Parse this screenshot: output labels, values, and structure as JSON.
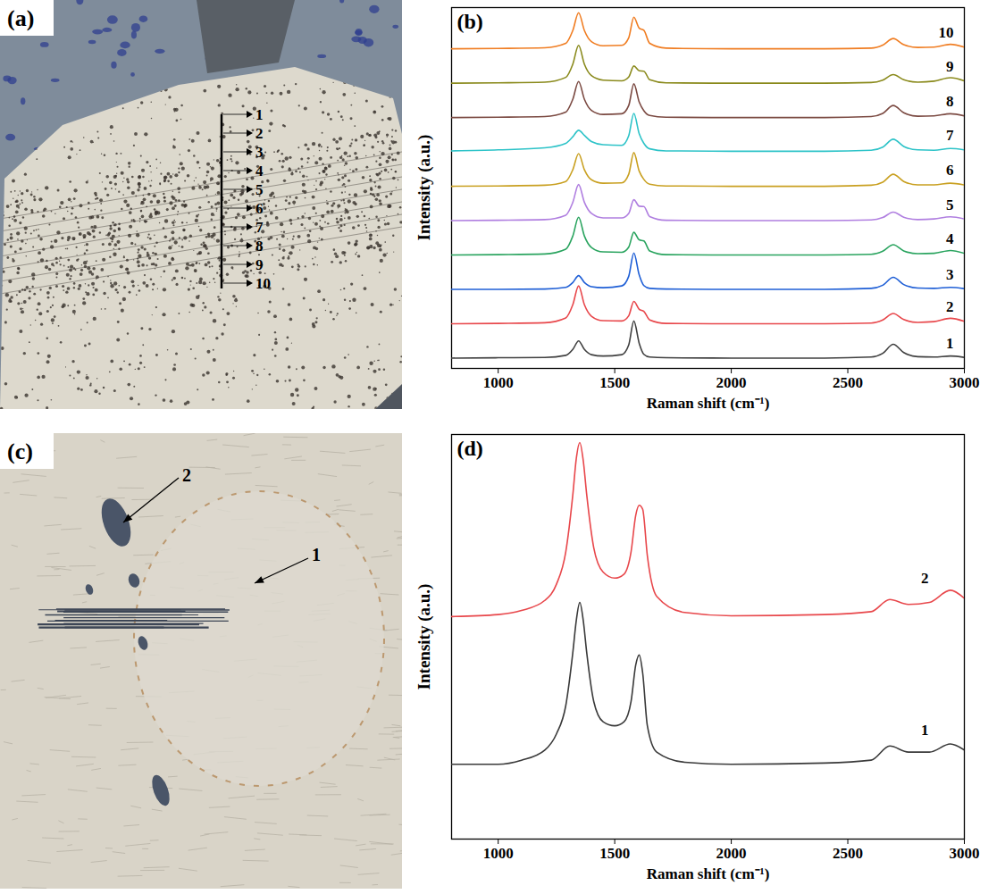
{
  "images": [
    {
      "letter": "(a)",
      "markers": [
        "1",
        "2",
        "3",
        "4",
        "5",
        "6",
        "7",
        "8",
        "9",
        "10"
      ]
    },
    {
      "letter": "(c)",
      "markers": [
        "1",
        "2"
      ]
    }
  ],
  "chart_data": [
    {
      "type": "line",
      "title": "(b)",
      "x_label": "Raman shift (cm⁻¹)",
      "y_label": "Intensity (a.u.)",
      "x": [
        800,
        1000,
        1200,
        1290,
        1320,
        1345,
        1370,
        1400,
        1450,
        1530,
        1560,
        1582,
        1605,
        1625,
        1650,
        1720,
        2000,
        2400,
        2600,
        2650,
        2695,
        2740,
        2800,
        2870,
        2940,
        3000
      ],
      "xlim": [
        800,
        3000
      ],
      "xticks": [
        1000,
        1500,
        2000,
        2500,
        3000
      ],
      "ylim": [
        0,
        10.5
      ],
      "yticks": [],
      "tick_labels": "x",
      "series": [
        {
          "name": "1",
          "color": "#404040",
          "values": [
            0.3,
            0.31,
            0.32,
            0.38,
            0.55,
            0.8,
            0.55,
            0.4,
            0.36,
            0.4,
            0.68,
            1.38,
            0.73,
            0.41,
            0.33,
            0.31,
            0.3,
            0.3,
            0.33,
            0.44,
            0.7,
            0.46,
            0.34,
            0.33,
            0.36,
            0.32
          ]
        },
        {
          "name": "2",
          "color": "#e8474b",
          "values": [
            1.3,
            1.31,
            1.33,
            1.47,
            1.85,
            2.4,
            1.85,
            1.52,
            1.39,
            1.38,
            1.53,
            1.95,
            1.72,
            1.66,
            1.41,
            1.31,
            1.3,
            1.3,
            1.32,
            1.41,
            1.6,
            1.42,
            1.34,
            1.36,
            1.46,
            1.37
          ]
        },
        {
          "name": "3",
          "color": "#1f5fd6",
          "values": [
            2.3,
            2.3,
            2.31,
            2.36,
            2.5,
            2.7,
            2.5,
            2.38,
            2.35,
            2.4,
            2.68,
            3.36,
            2.72,
            2.41,
            2.33,
            2.31,
            2.3,
            2.3,
            2.33,
            2.42,
            2.65,
            2.44,
            2.34,
            2.33,
            2.36,
            2.32
          ]
        },
        {
          "name": "4",
          "color": "#2aa45f",
          "values": [
            3.3,
            3.31,
            3.33,
            3.47,
            3.85,
            4.4,
            3.85,
            3.52,
            3.39,
            3.38,
            3.53,
            3.96,
            3.74,
            3.71,
            3.42,
            3.31,
            3.3,
            3.3,
            3.32,
            3.41,
            3.6,
            3.42,
            3.34,
            3.35,
            3.43,
            3.35
          ]
        },
        {
          "name": "5",
          "color": "#b07fe0",
          "values": [
            4.3,
            4.31,
            4.33,
            4.46,
            4.83,
            5.35,
            4.83,
            4.51,
            4.38,
            4.38,
            4.51,
            4.91,
            4.72,
            4.71,
            4.42,
            4.31,
            4.3,
            4.3,
            4.32,
            4.39,
            4.55,
            4.4,
            4.33,
            4.35,
            4.41,
            4.35
          ]
        },
        {
          "name": "6",
          "color": "#c9a021",
          "values": [
            5.3,
            5.31,
            5.33,
            5.44,
            5.78,
            6.25,
            5.78,
            5.49,
            5.39,
            5.4,
            5.65,
            6.28,
            5.74,
            5.5,
            5.36,
            5.31,
            5.3,
            5.3,
            5.33,
            5.42,
            5.65,
            5.44,
            5.34,
            5.34,
            5.39,
            5.34
          ]
        },
        {
          "name": "7",
          "color": "#2dc3c8",
          "values": [
            6.33,
            6.36,
            6.42,
            6.55,
            6.74,
            6.93,
            6.78,
            6.6,
            6.51,
            6.49,
            6.77,
            7.42,
            6.83,
            6.55,
            6.39,
            6.33,
            6.32,
            6.32,
            6.35,
            6.44,
            6.67,
            6.46,
            6.36,
            6.35,
            6.4,
            6.36
          ]
        },
        {
          "name": "8",
          "color": "#7b4a42",
          "values": [
            7.3,
            7.31,
            7.33,
            7.46,
            7.83,
            8.35,
            7.83,
            7.51,
            7.39,
            7.41,
            7.65,
            8.28,
            7.75,
            7.5,
            7.36,
            7.31,
            7.3,
            7.3,
            7.33,
            7.42,
            7.65,
            7.44,
            7.34,
            7.35,
            7.41,
            7.35
          ]
        },
        {
          "name": "9",
          "color": "#8a8a1c",
          "values": [
            8.3,
            8.31,
            8.33,
            8.47,
            8.85,
            9.4,
            8.85,
            8.52,
            8.39,
            8.37,
            8.48,
            8.8,
            8.66,
            8.65,
            8.4,
            8.31,
            8.3,
            8.3,
            8.32,
            8.39,
            8.55,
            8.4,
            8.33,
            8.36,
            8.46,
            8.37
          ]
        },
        {
          "name": "10",
          "color": "#f07d22",
          "values": [
            9.3,
            9.31,
            9.33,
            9.46,
            9.83,
            10.35,
            9.83,
            9.51,
            9.39,
            9.4,
            9.62,
            10.22,
            9.9,
            9.84,
            9.46,
            9.32,
            9.3,
            9.3,
            9.32,
            9.41,
            9.6,
            9.42,
            9.34,
            9.35,
            9.43,
            9.35
          ]
        }
      ]
    },
    {
      "type": "line",
      "title": "(d)",
      "x_label": "Raman shift (cm⁻¹)",
      "y_label": "Intensity (a.u.)",
      "x": [
        800,
        1000,
        1100,
        1200,
        1250,
        1290,
        1320,
        1335,
        1350,
        1365,
        1380,
        1410,
        1450,
        1500,
        1540,
        1570,
        1590,
        1605,
        1620,
        1640,
        1680,
        1800,
        2000,
        2400,
        2600,
        2680,
        2760,
        2850,
        2940,
        3000
      ],
      "xlim": [
        800,
        3000
      ],
      "xticks": [
        1000,
        1500,
        2000,
        2500,
        3000
      ],
      "ylim": [
        0,
        10
      ],
      "yticks": [],
      "tick_labels": "x",
      "series": [
        {
          "name": "1",
          "color": "#3a3a3a",
          "values": [
            1.85,
            1.85,
            1.95,
            2.2,
            2.6,
            3.3,
            4.6,
            5.4,
            5.85,
            5.4,
            4.6,
            3.4,
            2.9,
            2.8,
            2.9,
            3.4,
            4.3,
            4.55,
            4.1,
            2.8,
            2.15,
            1.9,
            1.85,
            1.88,
            1.95,
            2.3,
            2.15,
            2.15,
            2.35,
            2.2
          ]
        },
        {
          "name": "2",
          "color": "#e8474b",
          "values": [
            5.5,
            5.55,
            5.65,
            5.9,
            6.3,
            7.1,
            8.5,
            9.4,
            9.8,
            9.35,
            8.5,
            7.2,
            6.6,
            6.45,
            6.55,
            7.1,
            8,
            8.25,
            8.15,
            7,
            6,
            5.6,
            5.52,
            5.55,
            5.62,
            5.92,
            5.8,
            5.85,
            6.15,
            5.95
          ]
        }
      ]
    }
  ]
}
